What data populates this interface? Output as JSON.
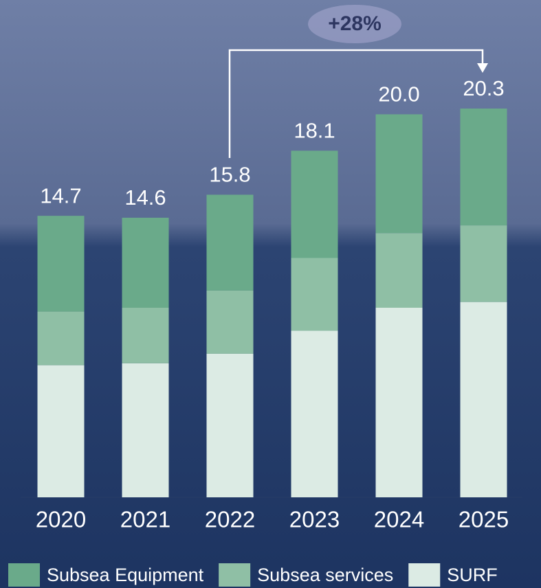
{
  "chart_data": {
    "type": "stacked-bar",
    "categories": [
      "2020",
      "2021",
      "2022",
      "2023",
      "2024",
      "2025"
    ],
    "series": [
      {
        "name": "SURF",
        "color": "#dcebe4",
        "values": [
          6.9,
          7.0,
          7.5,
          8.7,
          9.9,
          10.2
        ]
      },
      {
        "name": "Subsea services",
        "color": "#8fbfa5",
        "values": [
          2.8,
          2.9,
          3.3,
          3.8,
          3.9,
          4.0
        ]
      },
      {
        "name": "Subsea Equipment",
        "color": "#6aaa8a",
        "values": [
          5.0,
          4.7,
          5.0,
          5.6,
          6.2,
          6.1
        ]
      }
    ],
    "totals": {
      "values": [
        14.7,
        14.6,
        15.8,
        18.1,
        20.0,
        20.3
      ],
      "value_labels": [
        "14.7",
        "14.6",
        "15.8",
        "18.1",
        "20.0",
        "20.3"
      ]
    },
    "legend_order": [
      2,
      1,
      0
    ],
    "annotation": "+28%",
    "ylim": [
      0,
      25
    ]
  }
}
